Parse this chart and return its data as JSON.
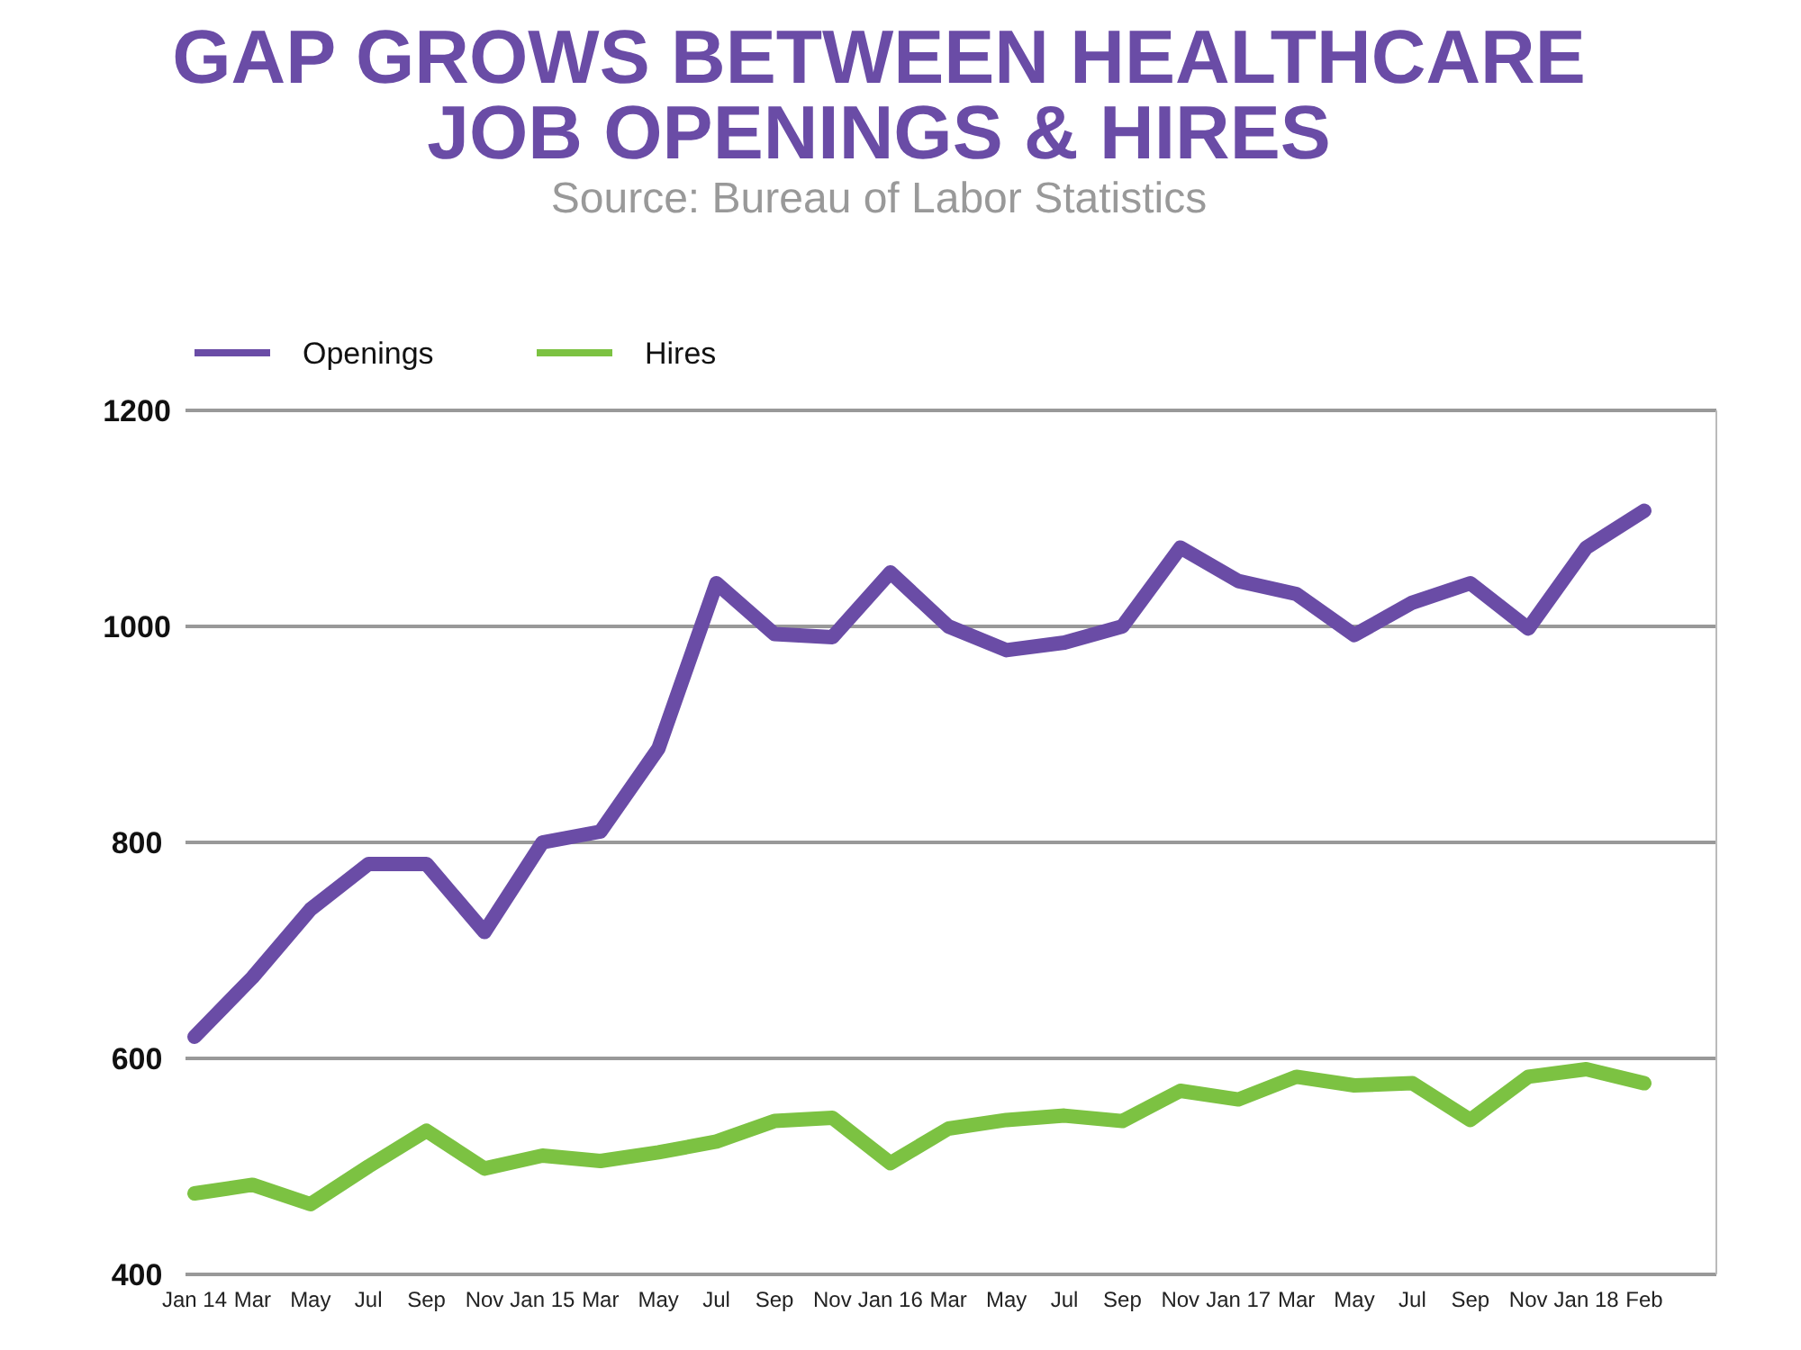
{
  "chart_data": {
    "type": "line",
    "title": "GAP GROWS BETWEEN HEALTHCARE JOB OPENINGS & HIRES",
    "subtitle": "Source: Bureau of Labor Statistics",
    "categories": [
      "Jan 14",
      "Mar",
      "May",
      "Jul",
      "Sep",
      "Nov",
      "Jan 15",
      "Mar",
      "May",
      "Jul",
      "Sep",
      "Nov",
      "Jan 16",
      "Mar",
      "May",
      "Jul",
      "Sep",
      "Nov",
      "Jan 17",
      "Mar",
      "May",
      "Jul",
      "Sep",
      "Nov",
      "Jan 18",
      "Feb"
    ],
    "series": [
      {
        "name": "Openings",
        "color": "#6a4ca6",
        "values": [
          620,
          675,
          738,
          780,
          780,
          717,
          800,
          810,
          887,
          1040,
          993,
          990,
          1050,
          1000,
          978,
          985,
          1000,
          1073,
          1042,
          1030,
          992,
          1022,
          1040,
          998,
          1073,
          1107
        ]
      },
      {
        "name": "Hires",
        "color": "#7cc242",
        "values": [
          475,
          483,
          465,
          500,
          533,
          498,
          510,
          505,
          513,
          523,
          542,
          545,
          503,
          535,
          543,
          547,
          542,
          570,
          562,
          583,
          575,
          577,
          543,
          583,
          590,
          577
        ]
      }
    ],
    "ylim": [
      400,
      1200
    ],
    "yticks": [
      400,
      600,
      800,
      1000,
      1200
    ],
    "grid": "y",
    "legend": "top left",
    "marker": "none",
    "line_style": "solid"
  }
}
